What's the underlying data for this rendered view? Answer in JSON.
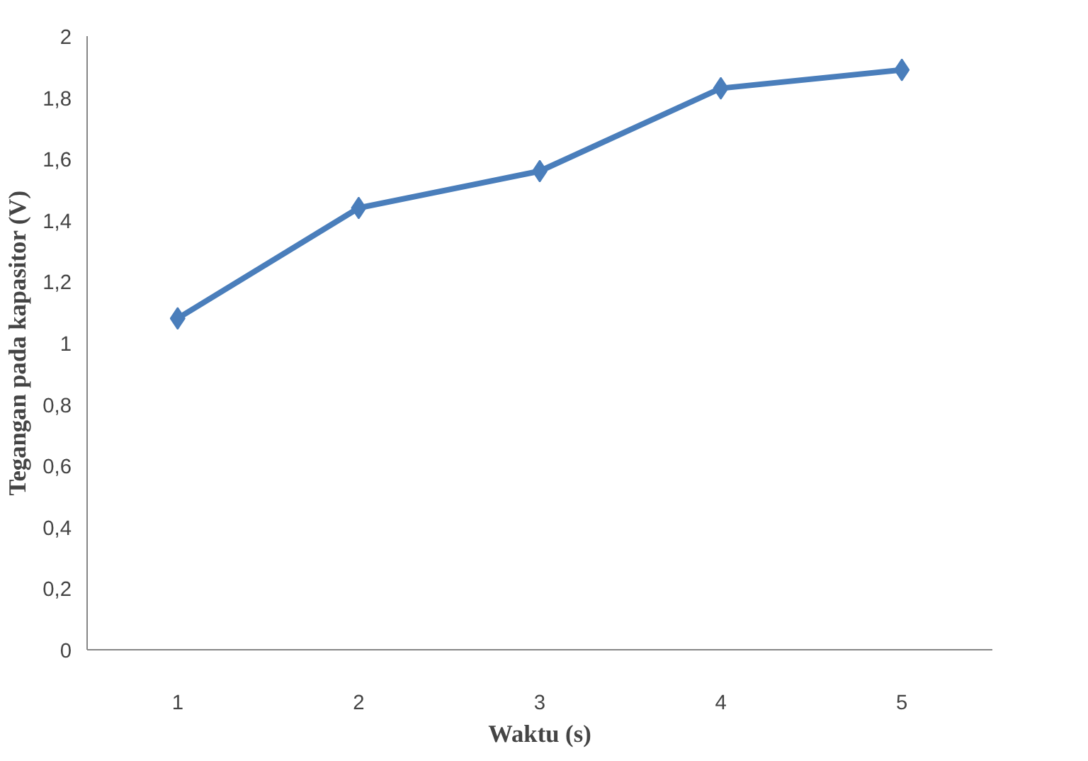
{
  "chart_data": {
    "type": "line",
    "xlabel": "Waktu (s)",
    "ylabel": "Tegangan pada kapasitor (V)",
    "categories": [
      "1",
      "2",
      "3",
      "4",
      "5"
    ],
    "series": [
      {
        "color": "#4a7ebb",
        "values": [
          1.08,
          1.44,
          1.56,
          1.83,
          1.89
        ]
      }
    ],
    "ylim": [
      0,
      2
    ],
    "yticks": [
      0,
      {
        "value": 0.2,
        "label": "0,2"
      },
      {
        "value": 0.4,
        "label": "0,4"
      },
      {
        "value": 0.6,
        "label": "0,6"
      },
      {
        "value": 0.8,
        "label": "0,8"
      },
      1,
      {
        "value": 1.2,
        "label": "1,2"
      },
      {
        "value": 1.4,
        "label": "1,4"
      },
      {
        "value": 1.6,
        "label": "1,6"
      },
      {
        "value": 1.8,
        "label": "1,8"
      },
      2
    ],
    "marker": "diamond",
    "line_style": "solid"
  }
}
